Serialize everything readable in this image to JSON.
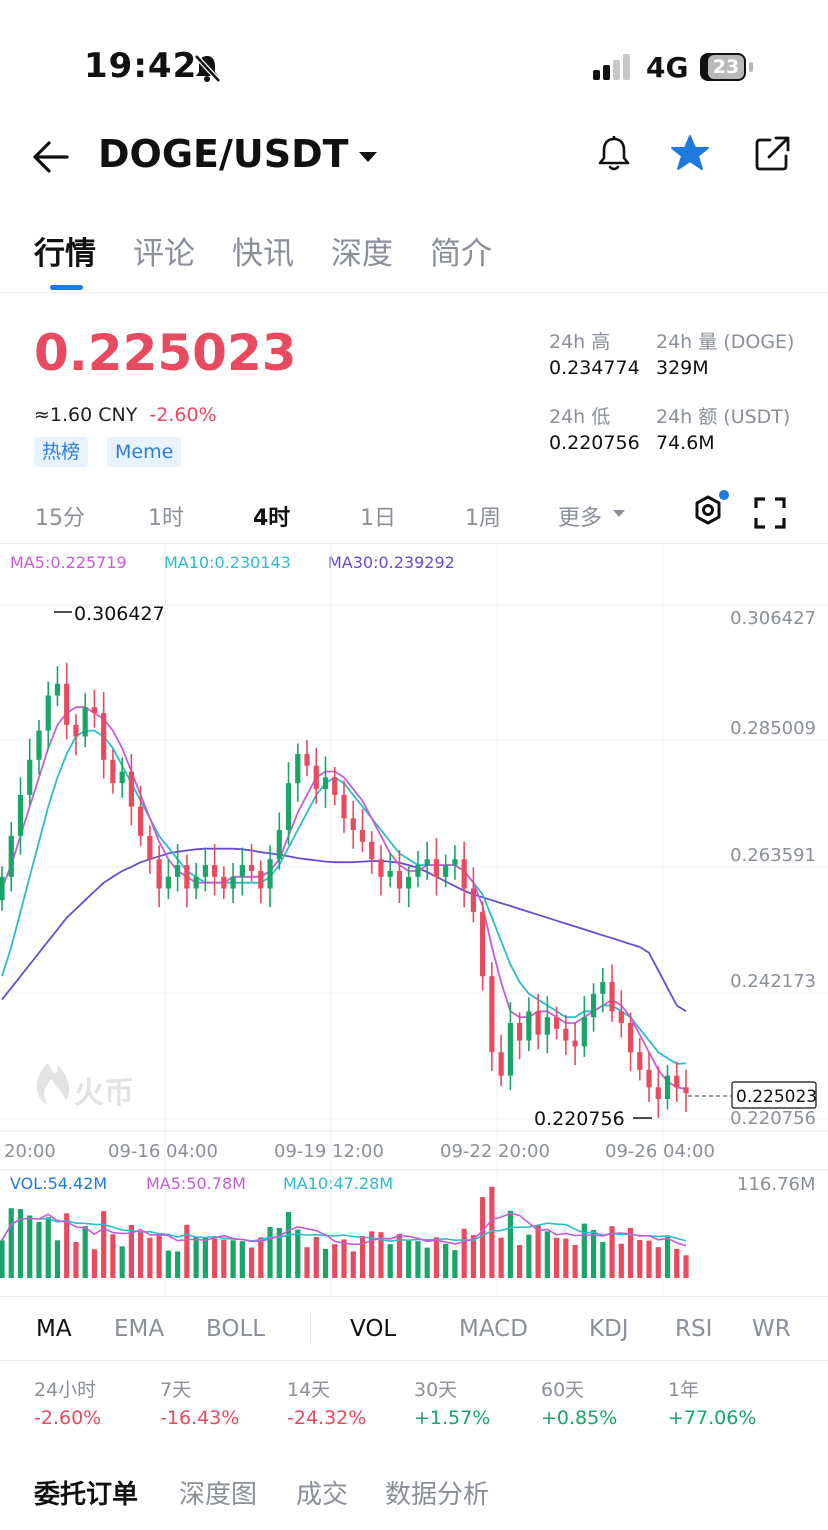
{
  "status_bar": {
    "time": "19:42",
    "network": "4G",
    "battery": "23"
  },
  "header": {
    "title": "DOGE/USDT"
  },
  "tabs": [
    {
      "label": "行情",
      "active": true
    },
    {
      "label": "评论"
    },
    {
      "label": "快讯"
    },
    {
      "label": "深度"
    },
    {
      "label": "简介"
    }
  ],
  "ticker": {
    "price": "0.225023",
    "cny": "≈1.60 CNY",
    "change": "-2.60%",
    "tags": [
      "热榜",
      "Meme"
    ],
    "stats": {
      "high_label": "24h 高",
      "high_value": "0.234774",
      "vol_label": "24h 量 (DOGE)",
      "vol_value": "329M",
      "low_label": "24h 低",
      "low_value": "0.220756",
      "amount_label": "24h 额 (USDT)",
      "amount_value": "74.6M"
    }
  },
  "intervals": [
    "15分",
    "1时",
    "4时",
    "1日",
    "1周",
    "更多"
  ],
  "active_interval": "4时",
  "ma_legend": {
    "ma5": "MA5:0.225719",
    "ma10": "MA10:0.230143",
    "ma30": "MA30:0.239292"
  },
  "vol_legend": {
    "vol": "VOL:54.42M",
    "ma5": "MA5:50.78M",
    "ma10": "MA10:47.28M",
    "max": "116.76M"
  },
  "watermark": "火币",
  "colors": {
    "up": "#18a567",
    "down": "#e84a5f",
    "ma5": "#c75dd6",
    "ma10": "#2bbccc",
    "ma30": "#6a4bd0",
    "accent": "#1f7ae0"
  },
  "chart_data": {
    "type": "candlestick",
    "y_axis_ticks": [
      "0.306427",
      "0.285009",
      "0.263591",
      "0.242173",
      "0.220756"
    ],
    "x_axis_ticks": [
      "20:00",
      "09-16 04:00",
      "09-19 12:00",
      "09-22 20:00",
      "09-26 04:00"
    ],
    "high_marker": "0.306427",
    "low_marker": "0.220756",
    "last_price": "0.225023",
    "ylim": [
      0.220756,
      0.306427
    ],
    "ma5": [
      0.26,
      0.264,
      0.269,
      0.274,
      0.279,
      0.284,
      0.288,
      0.29,
      0.291,
      0.291,
      0.29,
      0.289,
      0.287,
      0.284,
      0.28,
      0.276,
      0.272,
      0.268,
      0.265,
      0.263,
      0.262,
      0.261,
      0.261,
      0.261,
      0.261,
      0.262,
      0.262,
      0.262,
      0.262,
      0.263,
      0.265,
      0.269,
      0.273,
      0.276,
      0.279,
      0.28,
      0.28,
      0.279,
      0.277,
      0.275,
      0.272,
      0.269,
      0.266,
      0.264,
      0.263,
      0.263,
      0.264,
      0.264,
      0.264,
      0.264,
      0.263,
      0.261,
      0.257,
      0.25,
      0.244,
      0.239,
      0.238,
      0.238,
      0.239,
      0.239,
      0.238,
      0.237,
      0.237,
      0.238,
      0.239,
      0.24,
      0.241,
      0.24,
      0.238,
      0.235,
      0.232,
      0.229,
      0.227,
      0.226,
      0.2257
    ],
    "ma10": [
      0.245,
      0.25,
      0.256,
      0.262,
      0.268,
      0.274,
      0.279,
      0.283,
      0.286,
      0.287,
      0.287,
      0.286,
      0.284,
      0.281,
      0.278,
      0.275,
      0.272,
      0.269,
      0.267,
      0.265,
      0.263,
      0.262,
      0.261,
      0.261,
      0.261,
      0.261,
      0.261,
      0.261,
      0.261,
      0.262,
      0.264,
      0.267,
      0.27,
      0.273,
      0.276,
      0.278,
      0.279,
      0.278,
      0.276,
      0.274,
      0.272,
      0.27,
      0.268,
      0.266,
      0.265,
      0.264,
      0.264,
      0.264,
      0.264,
      0.264,
      0.263,
      0.261,
      0.259,
      0.255,
      0.251,
      0.247,
      0.244,
      0.242,
      0.241,
      0.24,
      0.239,
      0.238,
      0.238,
      0.239,
      0.239,
      0.24,
      0.24,
      0.239,
      0.238,
      0.236,
      0.234,
      0.232,
      0.231,
      0.23,
      0.2301
    ],
    "ma30": [
      0.241,
      0.243,
      0.245,
      0.247,
      0.249,
      0.251,
      0.253,
      0.255,
      0.2565,
      0.258,
      0.2595,
      0.261,
      0.262,
      0.263,
      0.2637,
      0.2645,
      0.265,
      0.2655,
      0.266,
      0.2663,
      0.2665,
      0.2667,
      0.2668,
      0.2668,
      0.2668,
      0.2668,
      0.2667,
      0.2665,
      0.2662,
      0.266,
      0.2658,
      0.2655,
      0.2652,
      0.265,
      0.2648,
      0.2646,
      0.2645,
      0.2645,
      0.2645,
      0.2646,
      0.2647,
      0.2647,
      0.2646,
      0.2644,
      0.264,
      0.2635,
      0.2628,
      0.262,
      0.2612,
      0.2604,
      0.2596,
      0.259,
      0.2585,
      0.258,
      0.2575,
      0.257,
      0.2565,
      0.256,
      0.2555,
      0.255,
      0.2545,
      0.254,
      0.2535,
      0.253,
      0.2525,
      0.252,
      0.2515,
      0.251,
      0.2505,
      0.25,
      0.249,
      0.246,
      0.243,
      0.24,
      0.239
    ],
    "candles_close": [
      0.262,
      0.269,
      0.276,
      0.282,
      0.287,
      0.293,
      0.295,
      0.288,
      0.286,
      0.291,
      0.29,
      0.282,
      0.278,
      0.28,
      0.274,
      0.269,
      0.265,
      0.26,
      0.262,
      0.264,
      0.26,
      0.262,
      0.264,
      0.262,
      0.26,
      0.262,
      0.264,
      0.263,
      0.26,
      0.265,
      0.27,
      0.278,
      0.283,
      0.281,
      0.277,
      0.279,
      0.276,
      0.272,
      0.27,
      0.268,
      0.265,
      0.262,
      0.263,
      0.26,
      0.262,
      0.264,
      0.265,
      0.262,
      0.264,
      0.265,
      0.26,
      0.256,
      0.245,
      0.232,
      0.228,
      0.237,
      0.234,
      0.239,
      0.235,
      0.238,
      0.236,
      0.234,
      0.233,
      0.238,
      0.242,
      0.244,
      0.239,
      0.237,
      0.232,
      0.229,
      0.226,
      0.224,
      0.228,
      0.226,
      0.225
    ],
    "volume_max": 116.76
  },
  "indicators": [
    "MA",
    "EMA",
    "BOLL",
    "VOL",
    "MACD",
    "KDJ",
    "RSI",
    "WR"
  ],
  "performance": [
    {
      "label": "24小时",
      "value": "-2.60%"
    },
    {
      "label": "7天",
      "value": "-16.43%"
    },
    {
      "label": "14天",
      "value": "-24.32%"
    },
    {
      "label": "30天",
      "value": "+1.57%"
    },
    {
      "label": "60天",
      "value": "+0.85%"
    },
    {
      "label": "1年",
      "value": "+77.06%"
    }
  ],
  "bottom_tabs": [
    {
      "label": "委托订单",
      "active": true
    },
    {
      "label": "深度图"
    },
    {
      "label": "成交"
    },
    {
      "label": "数据分析"
    }
  ]
}
